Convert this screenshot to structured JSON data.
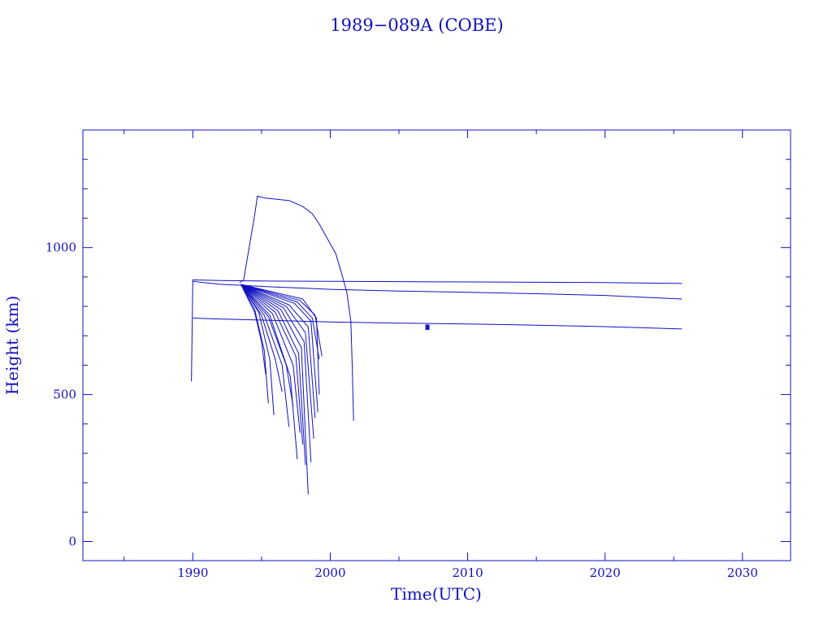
{
  "chart_data": {
    "type": "line",
    "title": "1989−089A (COBE)",
    "xlabel": "Time(UTC)",
    "ylabel": "Height (km)",
    "xlim": [
      1982,
      2033.5
    ],
    "ylim": [
      -65,
      1400
    ],
    "x_ticks": [
      1990,
      2000,
      2010,
      2020,
      2030
    ],
    "x_tick_labels": [
      "1990",
      "2000",
      "2010",
      "2020",
      "2030"
    ],
    "y_ticks": [
      0,
      500,
      1000
    ],
    "y_tick_labels": [
      "0",
      "500",
      "1000"
    ],
    "grid": false,
    "legend": "none",
    "color": "#1010c0",
    "series": [
      {
        "x": [
          1989.9,
          1990.0,
          1992,
          1996,
          2000,
          2005,
          2010,
          2015,
          2020,
          2025.6
        ],
        "y": [
          545,
          890,
          888,
          886,
          885,
          884,
          883,
          882,
          881,
          878
        ]
      },
      {
        "x": [
          1990.0,
          1992,
          1996,
          2000,
          2005,
          2010,
          2015,
          2020,
          2025.6
        ],
        "y": [
          885,
          875,
          866,
          858,
          852,
          848,
          843,
          837,
          825
        ]
      },
      {
        "x": [
          1990.0,
          1992,
          1996,
          2000,
          2005,
          2010,
          2015,
          2020,
          2025.6
        ],
        "y": [
          760,
          757,
          752,
          747,
          743,
          740,
          736,
          731,
          723
        ]
      },
      {
        "x": [
          1993.4,
          1993.7,
          1994.1,
          1994.5,
          1994.7,
          1995.3,
          1996,
          1997,
          1998,
          1998.7,
          1999.2,
          1999.8,
          2000.4,
          2000.9,
          2001.2,
          2001.5,
          2001.6,
          2001.7
        ],
        "y": [
          880,
          890,
          1000,
          1110,
          1175,
          1168,
          1165,
          1160,
          1140,
          1115,
          1080,
          1030,
          980,
          900,
          850,
          750,
          600,
          410
        ]
      },
      {
        "x": [
          1993.5,
          1994.5,
          1995.0,
          1995.3
        ],
        "y": [
          875,
          780,
          680,
          570
        ]
      },
      {
        "x": [
          1993.5,
          1994.5,
          1995.2,
          1995.5
        ],
        "y": [
          875,
          790,
          650,
          470
        ]
      },
      {
        "x": [
          1993.5,
          1994.8,
          1995.6,
          1995.9
        ],
        "y": [
          875,
          780,
          620,
          430
        ]
      },
      {
        "x": [
          1993.5,
          1995.0,
          1996.0,
          1996.5
        ],
        "y": [
          875,
          770,
          620,
          510
        ]
      },
      {
        "x": [
          1993.5,
          1995.2,
          1996.5,
          1997.0
        ],
        "y": [
          875,
          770,
          600,
          390
        ]
      },
      {
        "x": [
          1993.5,
          1995.5,
          1996.8,
          1997.3
        ],
        "y": [
          875,
          765,
          600,
          460
        ]
      },
      {
        "x": [
          1993.5,
          1995.6,
          1997.1,
          1997.6
        ],
        "y": [
          875,
          770,
          560,
          280
        ]
      },
      {
        "x": [
          1993.5,
          1995.8,
          1997.3,
          1997.8
        ],
        "y": [
          875,
          775,
          600,
          370
        ]
      },
      {
        "x": [
          1993.5,
          1996.0,
          1997.5,
          1998.0
        ],
        "y": [
          875,
          780,
          630,
          330
        ]
      },
      {
        "x": [
          1993.5,
          1996.2,
          1997.7,
          1998.2
        ],
        "y": [
          875,
          785,
          640,
          260
        ]
      },
      {
        "x": [
          1993.5,
          1996.4,
          1997.9,
          1998.4
        ],
        "y": [
          875,
          790,
          660,
          160
        ]
      },
      {
        "x": [
          1993.5,
          1996.6,
          1998.1,
          1998.6
        ],
        "y": [
          875,
          795,
          680,
          270
        ]
      },
      {
        "x": [
          1993.5,
          1996.8,
          1998.2,
          1998.8
        ],
        "y": [
          875,
          800,
          710,
          350
        ]
      },
      {
        "x": [
          1993.5,
          1997.0,
          1998.4,
          1998.9
        ],
        "y": [
          875,
          805,
          730,
          420
        ]
      },
      {
        "x": [
          1993.5,
          1997.4,
          1998.6,
          1999.1
        ],
        "y": [
          875,
          810,
          750,
          440
        ]
      },
      {
        "x": [
          1993.5,
          1997.6,
          1998.7,
          1999.2
        ],
        "y": [
          875,
          815,
          760,
          620
        ]
      },
      {
        "x": [
          1993.5,
          1997.8,
          1998.9,
          1999.4
        ],
        "y": [
          875,
          820,
          770,
          630
        ]
      },
      {
        "x": [
          1993.5,
          1998.0,
          1999.0,
          1999.2
        ],
        "y": [
          875,
          825,
          760,
          500
        ]
      },
      {
        "x": [
          2007.0,
          2007.0
        ],
        "y": [
          720,
          738
        ]
      },
      {
        "x": [
          2007.15,
          2007.15
        ],
        "y": [
          720,
          738
        ]
      }
    ]
  }
}
